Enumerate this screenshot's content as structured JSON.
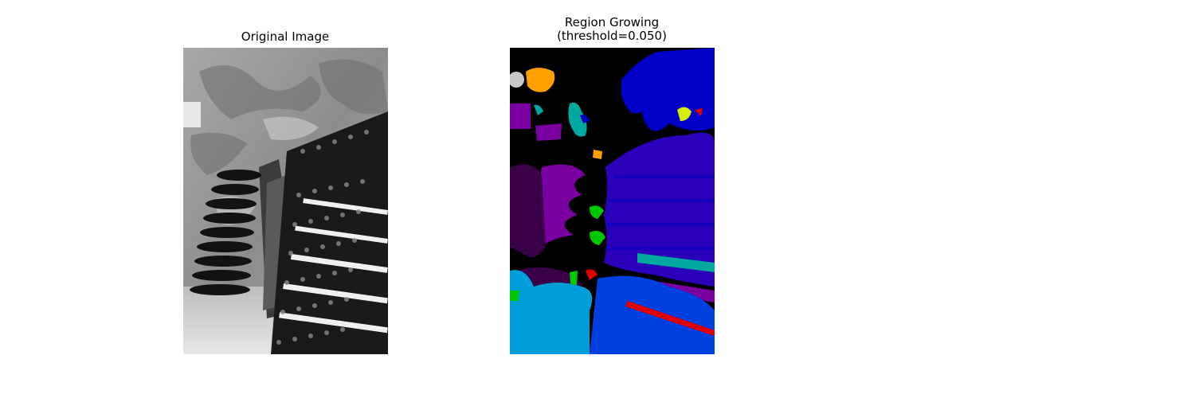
{
  "figure": {
    "panels": [
      {
        "title": "Original Image",
        "image": "grayscale photograph of champagne bottles resting neck-down in wooden riddling racks inside a stone cellar"
      },
      {
        "title_line1": "Region Growing",
        "title_line2": "(threshold=0.050)",
        "image": "segmentation label map with spectral colormap regions: black background, purple, indigo, blue, cyan, green, yellow, orange, red"
      }
    ],
    "colors": {
      "background": "#000000",
      "dark_purple": "#3a0048",
      "purple": "#7a00a0",
      "indigo": "#2a00b8",
      "blue": "#0000c8",
      "royal_blue": "#0040e0",
      "sky_blue": "#009ed8",
      "teal": "#00a8a0",
      "green": "#00c800",
      "yellow_green": "#d4f000",
      "orange": "#ff9f00",
      "red": "#e00000",
      "light_gray": "#c8c8c8"
    }
  }
}
